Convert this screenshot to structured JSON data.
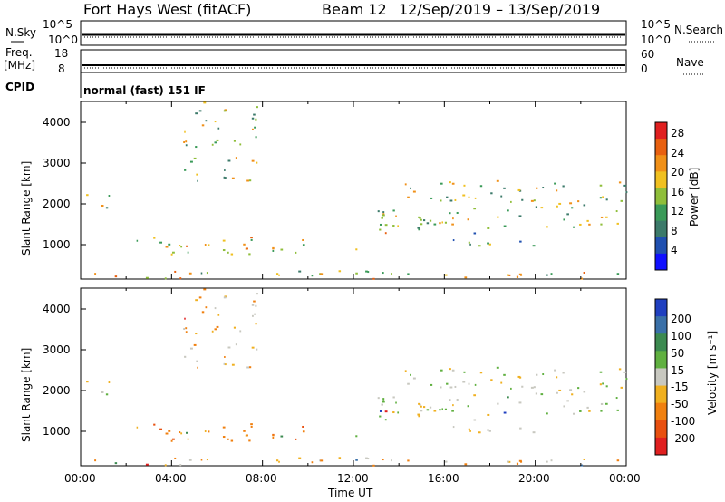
{
  "header": {
    "station": "Fort Hays West (fitACF)",
    "beam": "Beam 12",
    "date_range": "12/Sep/2019 – 13/Sep/2019"
  },
  "status_panel": {
    "left_top": "N.Sky",
    "left_mid_top": "Freq.",
    "left_mid_unit": "[MHz]",
    "left_bottom": "CPID",
    "right_top": "N.Search",
    "right_bottom": "Nave",
    "nsky_ticks": [
      "10^5",
      "10^0"
    ],
    "freq_ticks": [
      "18",
      "8"
    ],
    "nsearch_ticks": [
      "10^5",
      "10^0"
    ],
    "nave_ticks": [
      "60",
      "0"
    ],
    "cpid_text": "normal (fast) 151 IF"
  },
  "axes": {
    "time_ticks": [
      "00:00",
      "04:00",
      "08:00",
      "12:00",
      "16:00",
      "20:00",
      "00:00"
    ],
    "xlabel": "Time UT",
    "ylabel": "Slant Range [km]",
    "range_ticks": [
      "1000",
      "2000",
      "3000",
      "4000"
    ]
  },
  "colorbars": {
    "power": {
      "label": "Power [dB]",
      "ticks": [
        "4",
        "8",
        "12",
        "16",
        "20",
        "24",
        "28"
      ],
      "colors": [
        "#1010ff",
        "#2050b0",
        "#3c7a6a",
        "#3a9a58",
        "#8fbe3a",
        "#f0c020",
        "#f09018",
        "#e86010",
        "#e02020"
      ]
    },
    "velocity": {
      "label": "Velocity [m s⁻¹]",
      "ticks": [
        "200",
        "100",
        "50",
        "15",
        "-15",
        "-50",
        "-100",
        "-200"
      ],
      "colors": [
        "#2040c0",
        "#3a70a8",
        "#3c8a50",
        "#60b040",
        "#c8c8c0",
        "#f0b020",
        "#f08010",
        "#e85010",
        "#e02020"
      ]
    }
  },
  "chart_data": {
    "type": "heatmap",
    "x_range": [
      "00:00",
      "00:00"
    ],
    "x_hours": [
      0,
      24
    ],
    "y_range_km": [
      180,
      4500
    ],
    "scatter_bands": [
      {
        "t0": 0.0,
        "t1": 1.4,
        "r0": 1850,
        "r1": 2300,
        "pow": 0.45,
        "vel": 4
      },
      {
        "t0": 1.3,
        "t1": 10.0,
        "r0": 800,
        "r1": 1300,
        "pow": 0.55,
        "vel": 6
      },
      {
        "t0": 10.6,
        "t1": 12.2,
        "r0": 800,
        "r1": 1000,
        "pow": 0.35,
        "vel": 7
      },
      {
        "t0": 0.0,
        "t1": 24.0,
        "r0": 200,
        "r1": 400,
        "pow": 0.6,
        "vel": 5
      },
      {
        "t0": 13.0,
        "t1": 24.0,
        "r0": 1400,
        "r1": 2600,
        "pow": 0.5,
        "vel": 4
      },
      {
        "t0": 13.0,
        "t1": 16.5,
        "r0": 1300,
        "r1": 1900,
        "pow": 0.55,
        "vel": 4
      },
      {
        "t0": 16.0,
        "t1": 20.5,
        "r0": 1000,
        "r1": 1400,
        "pow": 0.4,
        "vel": 4
      },
      {
        "t0": 4.5,
        "t1": 7.8,
        "r0": 2500,
        "r1": 4500,
        "pow": 0.5,
        "vel": 5
      }
    ]
  }
}
